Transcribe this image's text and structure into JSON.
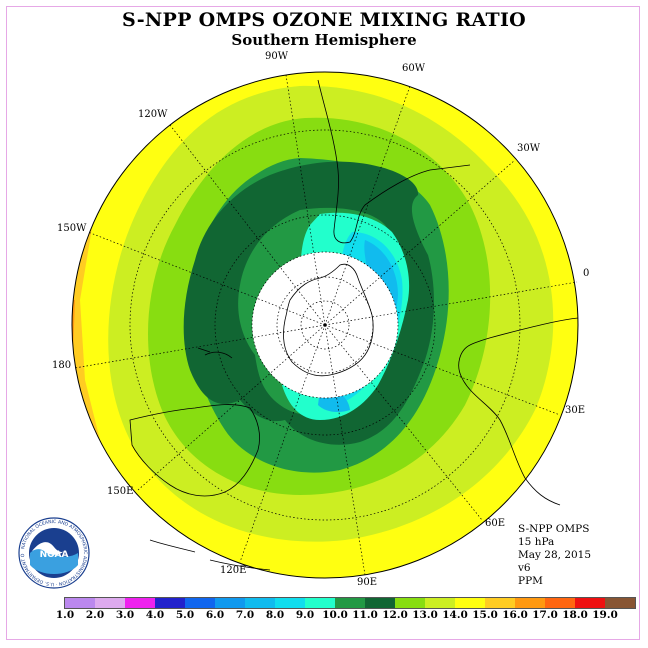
{
  "title": "S-NPP OMPS OZONE MIXING RATIO",
  "subtitle": "Southern Hemisphere",
  "longitudes": [
    "90W",
    "60W",
    "120W",
    "30W",
    "150W",
    "0",
    "180",
    "30E",
    "150E",
    "60E",
    "120E",
    "90E"
  ],
  "info": {
    "instrument": "S-NPP OMPS",
    "level": "15 hPa",
    "date": "May 28, 2015",
    "version": "v6",
    "units": "PPM"
  },
  "logo": {
    "text": "NOAA",
    "ring_text": "NATIONAL OCEANIC AND ATMOSPHERIC ADMINISTRATION · U.S. DEPARTMENT OF COMMERCE"
  },
  "colorbar": {
    "labels": [
      "1.0",
      "2.0",
      "3.0",
      "4.0",
      "5.0",
      "6.0",
      "7.0",
      "8.0",
      "9.0",
      "10.0",
      "11.0",
      "12.0",
      "13.0",
      "14.0",
      "15.0",
      "16.0",
      "17.0",
      "18.0",
      "19.0"
    ],
    "colors": [
      "#bb88ee",
      "#ddaaee",
      "#ee22ee",
      "#2222cc",
      "#1166ee",
      "#1199ee",
      "#11bbee",
      "#11ddee",
      "#22ffcc",
      "#229944",
      "#116633",
      "#88dd11",
      "#ccee22",
      "#ffff11",
      "#ffcc22",
      "#ff9911",
      "#ff6611",
      "#ee1111",
      "#885533"
    ]
  }
}
